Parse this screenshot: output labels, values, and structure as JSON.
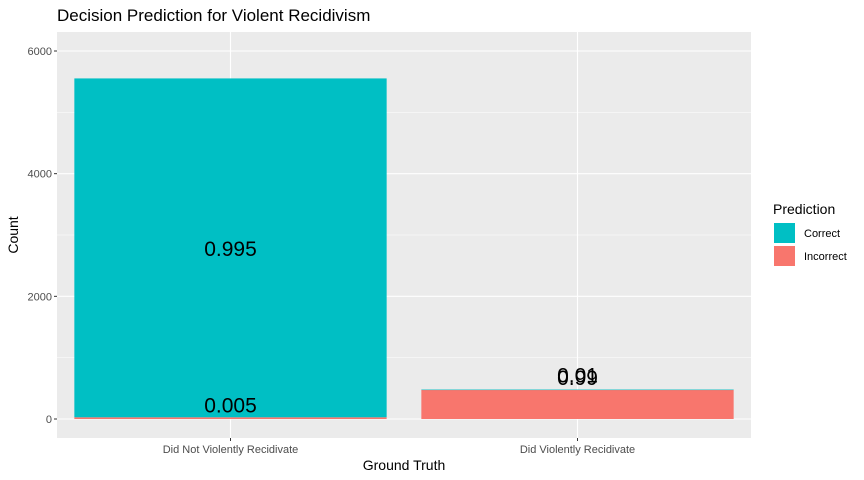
{
  "chart_data": {
    "type": "bar",
    "stacked": true,
    "title": "Decision Prediction for Violent Recidivism",
    "xlabel": "Ground Truth",
    "ylabel": "Count",
    "categories": [
      "Did Not Violently Recidivate",
      "Did Violently Recidivate"
    ],
    "ylim": [
      0,
      6200
    ],
    "yticks": [
      0,
      2000,
      4000,
      6000
    ],
    "grid": true,
    "legend_position": "right",
    "legend_title": "Prediction",
    "series": [
      {
        "name": "Incorrect",
        "color": "#F8766D",
        "values": [
          28,
          475
        ]
      },
      {
        "name": "Correct",
        "color": "#00BFC4",
        "values": [
          5525,
          5
        ]
      }
    ],
    "data_labels": [
      {
        "category": 0,
        "series": "Correct",
        "text": "0.995"
      },
      {
        "category": 0,
        "series": "Incorrect",
        "text": "0.005"
      },
      {
        "category": 1,
        "series": "Correct",
        "text": "0.01"
      },
      {
        "category": 1,
        "series": "Incorrect",
        "text": "0.99"
      }
    ],
    "legend_order": [
      "Correct",
      "Incorrect"
    ],
    "panel_background": "#EBEBEB"
  }
}
